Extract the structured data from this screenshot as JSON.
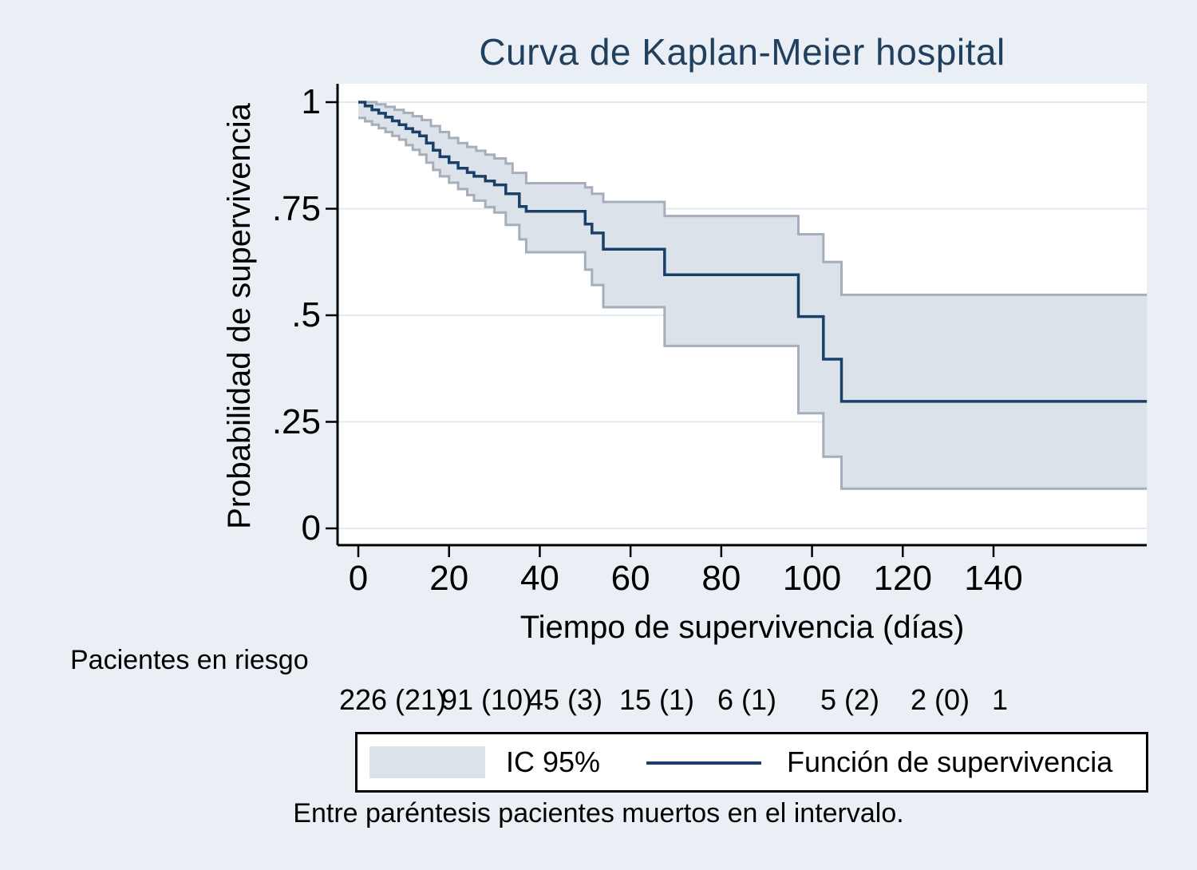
{
  "chart_data": {
    "type": "line",
    "subtype": "kaplan-meier-step",
    "title": "Curva de Kaplan-Meier hospital",
    "xlabel": "Tiempo de supervivencia (días)",
    "ylabel": "Probabilidad de supervivencia",
    "xlim": [
      0,
      174
    ],
    "ylim": [
      0,
      1
    ],
    "grid": true,
    "xticks": [
      0,
      20,
      40,
      60,
      80,
      100,
      120,
      140
    ],
    "yticks": [
      {
        "v": 0,
        "label": "0"
      },
      {
        "v": 0.25,
        "label": ".25"
      },
      {
        "v": 0.5,
        "label": ".5"
      },
      {
        "v": 0.75,
        "label": ".75"
      },
      {
        "v": 1,
        "label": "1"
      }
    ],
    "legend": [
      {
        "label": "IC 95%",
        "type": "band"
      },
      {
        "label": "Función de supervivencia",
        "type": "line"
      }
    ],
    "series": [
      {
        "name": "Función de supervivencia",
        "role": "survival",
        "steps": [
          [
            0,
            1.0
          ],
          [
            1.5,
            0.991
          ],
          [
            3,
            0.982
          ],
          [
            4.5,
            0.974
          ],
          [
            6,
            0.965
          ],
          [
            7.5,
            0.956
          ],
          [
            9,
            0.947
          ],
          [
            10.5,
            0.938
          ],
          [
            12,
            0.93
          ],
          [
            13.5,
            0.921
          ],
          [
            15,
            0.904
          ],
          [
            16.5,
            0.887
          ],
          [
            18,
            0.872
          ],
          [
            20,
            0.858
          ],
          [
            22,
            0.845
          ],
          [
            24,
            0.835
          ],
          [
            25.5,
            0.826
          ],
          [
            28,
            0.815
          ],
          [
            30,
            0.806
          ],
          [
            32.5,
            0.785
          ],
          [
            35.5,
            0.755
          ],
          [
            37,
            0.744
          ],
          [
            50,
            0.714
          ],
          [
            51.5,
            0.693
          ],
          [
            54,
            0.655
          ],
          [
            67.5,
            0.595
          ],
          [
            97,
            0.497
          ],
          [
            102.5,
            0.397
          ],
          [
            106.5,
            0.298
          ]
        ]
      },
      {
        "name": "IC 95% límite superior",
        "role": "ci_upper",
        "steps": [
          [
            0,
            1.0
          ],
          [
            4,
            0.995
          ],
          [
            6,
            0.989
          ],
          [
            8,
            0.982
          ],
          [
            10,
            0.975
          ],
          [
            12,
            0.967
          ],
          [
            14,
            0.958
          ],
          [
            16,
            0.944
          ],
          [
            18,
            0.93
          ],
          [
            20,
            0.916
          ],
          [
            22,
            0.904
          ],
          [
            24,
            0.895
          ],
          [
            26,
            0.886
          ],
          [
            28,
            0.877
          ],
          [
            30,
            0.868
          ],
          [
            32.5,
            0.856
          ],
          [
            34,
            0.834
          ],
          [
            37,
            0.81
          ],
          [
            50,
            0.8
          ],
          [
            51.5,
            0.785
          ],
          [
            54,
            0.766
          ],
          [
            67.5,
            0.733
          ],
          [
            97,
            0.69
          ],
          [
            102.5,
            0.625
          ],
          [
            106.5,
            0.548
          ]
        ]
      },
      {
        "name": "IC 95% límite inferior",
        "role": "ci_lower",
        "steps": [
          [
            0,
            0.963
          ],
          [
            1.5,
            0.955
          ],
          [
            3,
            0.947
          ],
          [
            4.5,
            0.939
          ],
          [
            6,
            0.93
          ],
          [
            7.5,
            0.921
          ],
          [
            9,
            0.912
          ],
          [
            10.5,
            0.899
          ],
          [
            12,
            0.888
          ],
          [
            13.5,
            0.877
          ],
          [
            15,
            0.858
          ],
          [
            16.5,
            0.841
          ],
          [
            18,
            0.826
          ],
          [
            20,
            0.811
          ],
          [
            22,
            0.796
          ],
          [
            24,
            0.782
          ],
          [
            25.5,
            0.769
          ],
          [
            28,
            0.754
          ],
          [
            30,
            0.741
          ],
          [
            32.5,
            0.712
          ],
          [
            35.5,
            0.678
          ],
          [
            37,
            0.648
          ],
          [
            50,
            0.607
          ],
          [
            51.5,
            0.571
          ],
          [
            54,
            0.519
          ],
          [
            67.5,
            0.428
          ],
          [
            97,
            0.27
          ],
          [
            102.5,
            0.168
          ],
          [
            106.5,
            0.093
          ]
        ]
      }
    ],
    "risk_table": {
      "header": "Pacientes en riesgo",
      "times": [
        0,
        20,
        40,
        60,
        80,
        100,
        120,
        140
      ],
      "values": [
        "226 (21)",
        "91 (10)",
        "45 (3)",
        "15 (1)",
        "6 (1)",
        "5 (2)",
        "2 (0)",
        "1"
      ]
    },
    "note": "Entre paréntesis pacientes muertos en el intervalo.",
    "colors": {
      "background": "#e9eff4",
      "plot_bg": "#ffffff",
      "grid": "#e3ebf1",
      "band_fill": "#dce2ea",
      "band_edge": "#a5aeba",
      "line": "#1a4069",
      "title": "#21405e",
      "axis": "#000000"
    }
  }
}
